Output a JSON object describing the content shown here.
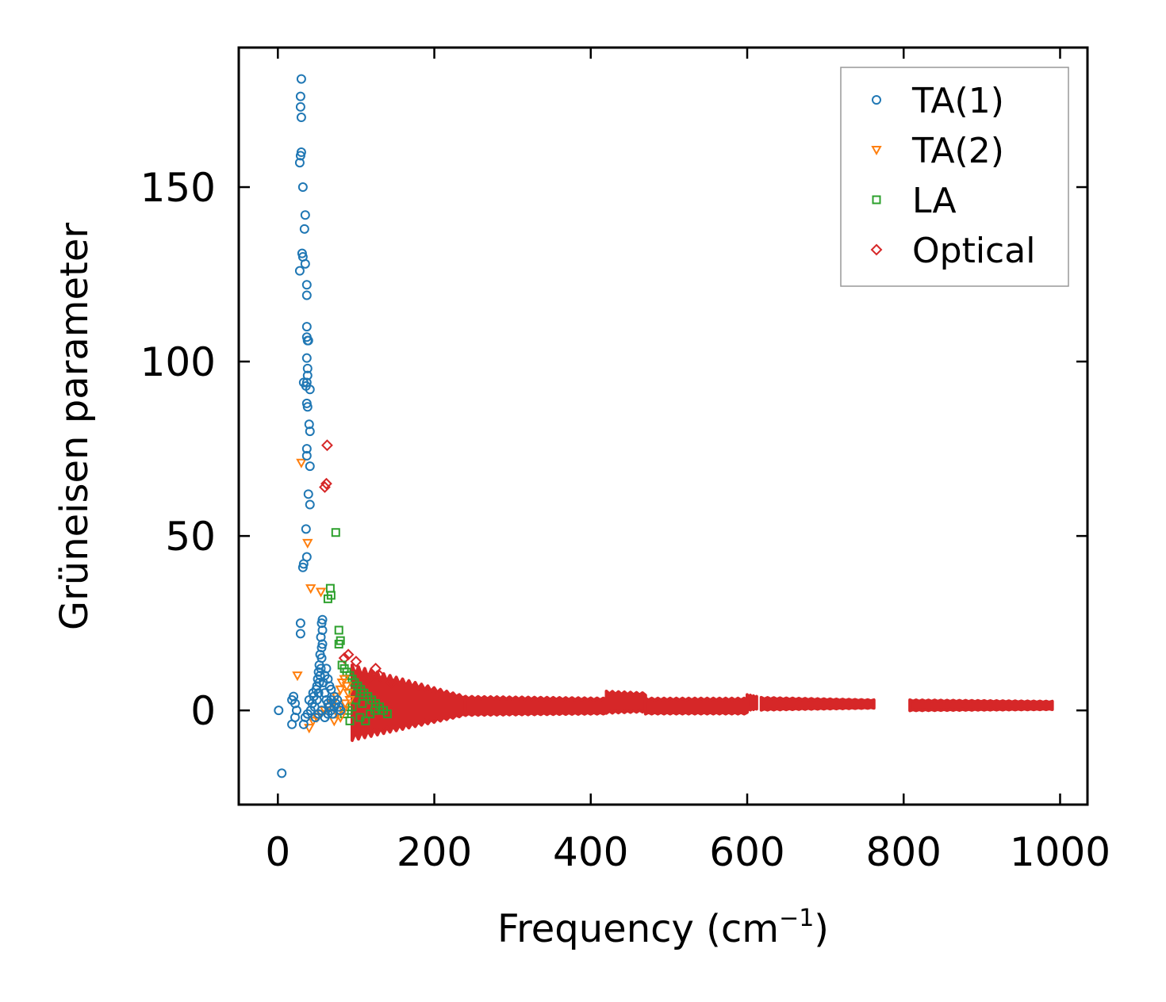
{
  "chart_data": {
    "type": "scatter",
    "title": "",
    "xlabel": "Frequency (cm",
    "xlabel_sup": "−1",
    "xlabel_end": ")",
    "ylabel": "Grüneisen parameter",
    "xlim": [
      -50,
      1035
    ],
    "ylim": [
      -27,
      190
    ],
    "xticks": [
      0,
      200,
      400,
      600,
      800,
      1000
    ],
    "xtick_labels": [
      "0",
      "200",
      "400",
      "600",
      "800",
      "1000"
    ],
    "yticks": [
      0,
      50,
      100,
      150
    ],
    "ytick_labels": [
      "0",
      "50",
      "100",
      "150"
    ],
    "grid": false,
    "legend_position": "top-right",
    "series": [
      {
        "name": "TA(1)",
        "marker": "circle",
        "color": "#1f77b4",
        "points": [
          [
            30,
            181
          ],
          [
            29,
            176
          ],
          [
            29,
            173
          ],
          [
            30,
            170
          ],
          [
            30,
            160
          ],
          [
            29,
            159
          ],
          [
            28,
            157
          ],
          [
            32,
            150
          ],
          [
            35,
            142
          ],
          [
            34,
            138
          ],
          [
            31,
            131
          ],
          [
            32,
            130
          ],
          [
            28,
            126
          ],
          [
            35,
            128
          ],
          [
            37,
            122
          ],
          [
            37,
            119
          ],
          [
            37,
            110
          ],
          [
            37,
            107
          ],
          [
            38,
            106
          ],
          [
            39,
            106
          ],
          [
            37,
            101
          ],
          [
            38,
            98
          ],
          [
            38,
            96
          ],
          [
            37,
            94
          ],
          [
            33,
            94
          ],
          [
            36,
            93
          ],
          [
            41,
            92
          ],
          [
            37,
            88
          ],
          [
            38,
            87
          ],
          [
            40,
            82
          ],
          [
            41,
            80
          ],
          [
            37,
            75
          ],
          [
            37,
            73
          ],
          [
            41,
            70
          ],
          [
            39,
            62
          ],
          [
            41,
            59
          ],
          [
            36,
            52
          ],
          [
            37,
            44
          ],
          [
            33,
            42
          ],
          [
            32,
            41
          ],
          [
            29,
            25
          ],
          [
            29,
            22
          ],
          [
            57,
            26
          ],
          [
            56,
            25
          ],
          [
            57,
            23
          ],
          [
            55,
            21
          ],
          [
            57,
            19
          ],
          [
            56,
            18
          ],
          [
            54,
            16
          ],
          [
            56,
            15
          ],
          [
            53,
            13
          ],
          [
            55,
            12
          ],
          [
            52,
            11
          ],
          [
            54,
            10
          ],
          [
            51,
            9
          ],
          [
            53,
            8
          ],
          [
            50,
            7
          ],
          [
            49,
            6
          ],
          [
            52,
            5
          ],
          [
            46,
            4
          ],
          [
            50,
            3
          ],
          [
            44,
            2
          ],
          [
            47,
            1
          ],
          [
            42,
            0
          ],
          [
            38,
            -1
          ],
          [
            35,
            -2
          ],
          [
            33,
            -4
          ],
          [
            20,
            4
          ],
          [
            18,
            3
          ],
          [
            22,
            2
          ],
          [
            24,
            0
          ],
          [
            22,
            -2
          ],
          [
            18,
            -4
          ],
          [
            5,
            -18
          ],
          [
            1,
            0
          ],
          [
            60,
            5
          ],
          [
            62,
            3
          ],
          [
            64,
            2
          ],
          [
            66,
            1
          ],
          [
            68,
            0
          ],
          [
            70,
            -1
          ],
          [
            72,
            1
          ],
          [
            74,
            2
          ],
          [
            76,
            3
          ],
          [
            78,
            1
          ],
          [
            80,
            0
          ],
          [
            58,
            8
          ],
          [
            60,
            10
          ],
          [
            62,
            12
          ],
          [
            64,
            9
          ],
          [
            66,
            7
          ],
          [
            68,
            6
          ],
          [
            40,
            3
          ],
          [
            45,
            5
          ],
          [
            48,
            -2
          ],
          [
            52,
            -1
          ],
          [
            56,
            0
          ],
          [
            60,
            -2
          ],
          [
            64,
            -1
          ],
          [
            68,
            3
          ],
          [
            72,
            4
          ]
        ]
      },
      {
        "name": "TA(2)",
        "marker": "triangle",
        "color": "#ff7f0e",
        "points": [
          [
            30,
            71
          ],
          [
            38,
            48
          ],
          [
            42,
            35
          ],
          [
            55,
            34
          ],
          [
            25,
            10
          ],
          [
            40,
            -5
          ],
          [
            45,
            -3
          ],
          [
            50,
            -2
          ],
          [
            55,
            -1
          ],
          [
            60,
            0
          ],
          [
            65,
            1
          ],
          [
            70,
            2
          ],
          [
            75,
            4
          ],
          [
            80,
            6
          ],
          [
            82,
            8
          ],
          [
            85,
            9
          ],
          [
            88,
            7
          ],
          [
            90,
            5
          ],
          [
            92,
            3
          ],
          [
            86,
            2
          ],
          [
            84,
            0
          ],
          [
            80,
            -2
          ],
          [
            76,
            -1
          ],
          [
            72,
            -3
          ]
        ]
      },
      {
        "name": "LA",
        "marker": "square",
        "color": "#2ca02c",
        "points": [
          [
            74,
            51
          ],
          [
            67,
            35
          ],
          [
            68,
            33
          ],
          [
            64,
            32
          ],
          [
            78,
            23
          ],
          [
            80,
            20
          ],
          [
            78,
            19
          ],
          [
            82,
            13
          ],
          [
            85,
            12
          ],
          [
            88,
            11
          ],
          [
            92,
            10
          ],
          [
            95,
            9
          ],
          [
            98,
            8
          ],
          [
            102,
            7
          ],
          [
            106,
            6
          ],
          [
            110,
            5
          ],
          [
            115,
            4
          ],
          [
            120,
            3
          ],
          [
            125,
            2
          ],
          [
            130,
            1
          ],
          [
            135,
            0
          ],
          [
            140,
            -1
          ],
          [
            100,
            3
          ],
          [
            95,
            1
          ],
          [
            90,
            0
          ],
          [
            85,
            -1
          ],
          [
            105,
            -2
          ],
          [
            112,
            -3
          ],
          [
            118,
            -1
          ],
          [
            124,
            0
          ],
          [
            108,
            2
          ],
          [
            96,
            5
          ],
          [
            92,
            -3
          ]
        ]
      },
      {
        "name": "Optical",
        "marker": "diamond",
        "color": "#d62728",
        "points": [
          [
            63,
            76
          ],
          [
            62,
            65
          ],
          [
            60,
            64
          ],
          [
            100,
            14
          ],
          [
            90,
            16
          ],
          [
            85,
            15
          ],
          [
            125,
            12
          ],
          [
            130,
            10
          ],
          [
            145,
            8
          ],
          [
            120,
            10
          ],
          [
            115,
            9
          ],
          [
            110,
            8
          ],
          [
            105,
            7
          ]
        ]
      }
    ],
    "optical_bands": [
      {
        "x_start": 95,
        "x_end": 240,
        "y_center": 1,
        "spread_start": 12,
        "spread_end": 3
      },
      {
        "x_start": 240,
        "x_end": 420,
        "y_center": 1,
        "spread_start": 3,
        "spread_end": 2.5
      },
      {
        "x_start": 420,
        "x_end": 470,
        "y_center": 2,
        "spread_start": 3.5,
        "spread_end": 3
      },
      {
        "x_start": 470,
        "x_end": 600,
        "y_center": 1,
        "spread_start": 2.5,
        "spread_end": 2.5
      },
      {
        "x_start": 600,
        "x_end": 612,
        "y_center": 2,
        "spread_start": 2.5,
        "spread_end": 2
      },
      {
        "x_start": 618,
        "x_end": 762,
        "y_center": 1.7,
        "spread_start": 2,
        "spread_end": 1.3
      },
      {
        "x_start": 808,
        "x_end": 990,
        "y_center": 1.3,
        "spread_start": 1.7,
        "spread_end": 1.3
      }
    ]
  }
}
